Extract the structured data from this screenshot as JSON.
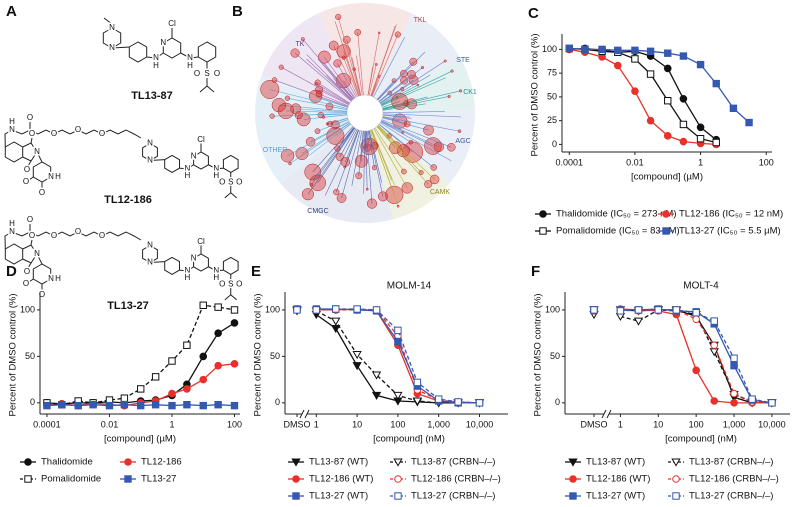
{
  "structures": {
    "panel": "A",
    "items": [
      {
        "name": "TL13-87",
        "atoms": [
          "N",
          "N",
          "N",
          "H",
          "N",
          "Cl",
          "N",
          "H",
          "S",
          "O",
          "O"
        ]
      },
      {
        "name": "TL12-186",
        "atoms": [
          "O",
          "O",
          "N",
          "O",
          "N",
          "H",
          "O",
          "N",
          "H",
          "O",
          "O",
          "O",
          "O",
          "N",
          "N",
          "N",
          "H",
          "N",
          "Cl",
          "N",
          "H",
          "S",
          "O",
          "O"
        ]
      },
      {
        "name": "TL13-27",
        "atoms": [
          "O",
          "O",
          "N",
          "O",
          "N",
          "H",
          "O",
          "N",
          "H",
          "O",
          "O",
          "O",
          "O",
          "N",
          "N",
          "N",
          "H",
          "N",
          "Cl",
          "N",
          "H",
          "S",
          "O",
          "O"
        ]
      }
    ]
  },
  "kinome": {
    "panel": "B",
    "groups": [
      "TK",
      "TKL",
      "STE",
      "CK1",
      "AGC",
      "CAMK",
      "CMGC",
      "OTHER"
    ]
  },
  "chart_data": [
    {
      "type": "line",
      "panel": "C",
      "ylabel": "Percent of DMSO control (%)",
      "xlabel": "[compound] (µM)",
      "xscale": "log",
      "xlim": [
        6e-05,
        150
      ],
      "xticks": [
        0.0001,
        0.01,
        1,
        100
      ],
      "ylim": [
        -8,
        112
      ],
      "yticks": [
        0,
        25,
        50,
        75,
        100
      ],
      "x": [
        0.0001,
        0.0003,
        0.001,
        0.003,
        0.01,
        0.03,
        0.1,
        0.3,
        1,
        3,
        10,
        30
      ],
      "series": [
        {
          "name": "Thalidomide (IC₅₀ = 273 nM)",
          "color": "#111111",
          "marker": "circle",
          "filled": true,
          "dashed": false,
          "values": [
            100,
            101,
            99,
            97,
            98,
            93,
            80,
            48,
            18,
            5,
            null,
            null
          ]
        },
        {
          "name": "TL12-186 (IC₅₀ = 12 nM)",
          "color": "#e8312a",
          "marker": "circle",
          "filled": true,
          "dashed": false,
          "values": [
            100,
            97,
            92,
            83,
            56,
            25,
            9,
            3,
            1,
            0,
            null,
            null
          ]
        },
        {
          "name": "Pomalidomide (IC₅₀ = 83 nM)",
          "color": "#111111",
          "marker": "square",
          "filled": false,
          "dashed": false,
          "values": [
            101,
            100,
            98,
            97,
            90,
            74,
            46,
            21,
            6,
            2,
            null,
            null
          ]
        },
        {
          "name": "TL13-27 (IC₅₀ = 5.5 µM)",
          "color": "#3558b0",
          "marker": "square",
          "filled": true,
          "dashed": false,
          "values": [
            101,
            100,
            100,
            99,
            99,
            98,
            96,
            93,
            84,
            64,
            38,
            23
          ]
        }
      ]
    },
    {
      "type": "line",
      "panel": "D",
      "ylabel": "Percent of DMSO control (%)",
      "xlabel": "[compound] (µM)",
      "xscale": "log",
      "xlim": [
        6e-05,
        150
      ],
      "xticks": [
        0.0001,
        0.01,
        1,
        100
      ],
      "ylim": [
        -12,
        115
      ],
      "yticks": [
        0,
        50,
        100
      ],
      "x": [
        0.0001,
        0.0003,
        0.001,
        0.003,
        0.01,
        0.03,
        0.1,
        0.3,
        1,
        3,
        10,
        30,
        100
      ],
      "series": [
        {
          "name": "Thalidomide",
          "color": "#111111",
          "marker": "circle",
          "filled": true,
          "dashed": false,
          "values": [
            0,
            -1,
            0,
            0,
            1,
            0,
            2,
            3,
            8,
            20,
            50,
            75,
            86
          ]
        },
        {
          "name": "TL12-186",
          "color": "#e8312a",
          "marker": "circle",
          "filled": true,
          "dashed": false,
          "values": [
            -2,
            -1,
            -3,
            0,
            -2,
            -3,
            0,
            2,
            10,
            15,
            25,
            40,
            42
          ]
        },
        {
          "name": "Pomalidomide",
          "color": "#111111",
          "marker": "square",
          "filled": false,
          "dashed": true,
          "values": [
            0,
            -2,
            2,
            0,
            3,
            5,
            15,
            28,
            45,
            62,
            105,
            103,
            100
          ]
        },
        {
          "name": "TL13-27",
          "color": "#3558b0",
          "marker": "square",
          "filled": true,
          "dashed": false,
          "values": [
            -3,
            -2,
            -3,
            -2,
            -3,
            -2,
            -3,
            -2,
            -3,
            -2,
            -3,
            -2,
            -3
          ]
        }
      ]
    },
    {
      "type": "line",
      "panel": "E",
      "title": "MOLM-14",
      "ylabel": "Percent of DMSO control (%)",
      "xlabel": "[compound] (nM)",
      "xscale": "log",
      "xlim": [
        0.7,
        50000
      ],
      "xticks": [
        1,
        10,
        100,
        {
          "value": 1000,
          "label": "1,000"
        },
        {
          "value": 10000,
          "label": "10,000"
        }
      ],
      "dmso_label": "DMSO",
      "ylim": [
        -12,
        115
      ],
      "yticks": [
        0,
        50,
        100
      ],
      "x": [
        1,
        3,
        10,
        30,
        100,
        300,
        1000,
        3000,
        10000
      ],
      "series": [
        {
          "name": "TL13-87 (WT)",
          "color": "#111111",
          "marker": "triangle",
          "filled": true,
          "dashed": false,
          "dmso": 100,
          "values": [
            95,
            80,
            40,
            8,
            2,
            1,
            0,
            0,
            0
          ]
        },
        {
          "name": "TL13-87 (CRBN–/–)",
          "color": "#111111",
          "marker": "triangle",
          "filled": false,
          "dashed": true,
          "dmso": 99,
          "values": [
            99,
            88,
            52,
            30,
            8,
            2,
            0,
            0,
            0
          ]
        },
        {
          "name": "TL12-186 (WT)",
          "color": "#e8312a",
          "marker": "circle",
          "filled": true,
          "dashed": false,
          "dmso": 101,
          "values": [
            100,
            100,
            101,
            99,
            62,
            10,
            2,
            0,
            0
          ]
        },
        {
          "name": "TL12-186 (CRBN–/–)",
          "color": "#e8312a",
          "marker": "circle",
          "filled": false,
          "dashed": true,
          "dmso": 100,
          "values": [
            101,
            100,
            100,
            100,
            72,
            14,
            3,
            1,
            0
          ]
        },
        {
          "name": "TL13-27 (WT)",
          "color": "#3558b0",
          "marker": "square",
          "filled": true,
          "dashed": false,
          "dmso": 101,
          "values": [
            101,
            101,
            100,
            99,
            66,
            18,
            2,
            0,
            0
          ]
        },
        {
          "name": "TL13-27 (CRBN–/–)",
          "color": "#3558b0",
          "marker": "square",
          "filled": false,
          "dashed": true,
          "dmso": 100,
          "values": [
            100,
            101,
            101,
            100,
            78,
            22,
            4,
            1,
            0
          ]
        }
      ]
    },
    {
      "type": "line",
      "panel": "F",
      "title": "MOLT-4",
      "ylabel": "Percent of DMSO control (%)",
      "xlabel": "[compound] (nM)",
      "xscale": "log",
      "xlim": [
        0.6,
        30000
      ],
      "xticks": [
        1,
        10,
        100,
        {
          "value": 1000,
          "label": "1,000"
        },
        {
          "value": 10000,
          "label": "10,000"
        }
      ],
      "dmso_label": "DMSO",
      "ylim": [
        -12,
        115
      ],
      "yticks": [
        0,
        50,
        100
      ],
      "x": [
        1,
        3,
        10,
        30,
        100,
        300,
        1000,
        3000,
        10000
      ],
      "series": [
        {
          "name": "TL13-87 (WT)",
          "color": "#111111",
          "marker": "triangle",
          "filled": true,
          "dashed": false,
          "dmso": 100,
          "values": [
            100,
            99,
            100,
            100,
            93,
            62,
            6,
            0,
            0
          ]
        },
        {
          "name": "TL13-87 (CRBN–/–)",
          "color": "#111111",
          "marker": "triangle",
          "filled": false,
          "dashed": true,
          "dmso": 95,
          "values": [
            93,
            88,
            100,
            99,
            95,
            55,
            9,
            1,
            0
          ]
        },
        {
          "name": "TL12-186 (WT)",
          "color": "#e8312a",
          "marker": "circle",
          "filled": true,
          "dashed": false,
          "dmso": 100,
          "values": [
            101,
            100,
            99,
            95,
            35,
            2,
            0,
            0,
            0
          ]
        },
        {
          "name": "TL12-186 (CRBN–/–)",
          "color": "#e8312a",
          "marker": "circle",
          "filled": false,
          "dashed": true,
          "dmso": 99,
          "values": [
            100,
            99,
            100,
            100,
            90,
            62,
            10,
            1,
            0
          ]
        },
        {
          "name": "TL13-27 (WT)",
          "color": "#3558b0",
          "marker": "square",
          "filled": true,
          "dashed": false,
          "dmso": 100,
          "values": [
            100,
            100,
            101,
            99,
            98,
            85,
            40,
            3,
            0
          ]
        },
        {
          "name": "TL13-27 (CRBN–/–)",
          "color": "#3558b0",
          "marker": "square",
          "filled": false,
          "dashed": true,
          "dmso": 100,
          "values": [
            99,
            100,
            100,
            100,
            97,
            88,
            48,
            4,
            0
          ]
        }
      ]
    }
  ]
}
